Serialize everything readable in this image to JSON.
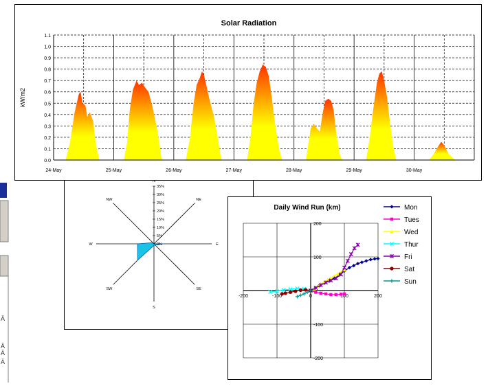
{
  "left_strip": {
    "glyphs": [
      "Ä",
      "Ä",
      "Ä",
      "Ä"
    ]
  },
  "chart_data": [
    {
      "type": "area",
      "title": "Solar Radiation",
      "ylabel": "kW/m2",
      "xlabel": "",
      "ylim": [
        0,
        1.1
      ],
      "yticks": [
        "0.0",
        "0.1",
        "0.2",
        "0.3",
        "0.4",
        "0.5",
        "0.6",
        "0.7",
        "0.8",
        "0.9",
        "1.0",
        "1.1"
      ],
      "x_categories": [
        "24-May",
        "25-May",
        "26-May",
        "27-May",
        "28-May",
        "29-May",
        "30-May"
      ],
      "grid": true,
      "colors": {
        "low": "#ffff00",
        "high": "#ff3300"
      },
      "series": [
        {
          "values": [
            [
              0.2,
              0
            ],
            [
              0.27,
              0.15
            ],
            [
              0.35,
              0.42
            ],
            [
              0.42,
              0.58
            ],
            [
              0.45,
              0.6
            ],
            [
              0.48,
              0.5
            ],
            [
              0.53,
              0.48
            ],
            [
              0.56,
              0.38
            ],
            [
              0.6,
              0.42
            ],
            [
              0.66,
              0.34
            ],
            [
              0.7,
              0.15
            ],
            [
              0.76,
              0
            ]
          ]
        },
        {
          "values": [
            [
              1.17,
              0
            ],
            [
              1.22,
              0.15
            ],
            [
              1.27,
              0.45
            ],
            [
              1.32,
              0.62
            ],
            [
              1.38,
              0.7
            ],
            [
              1.42,
              0.66
            ],
            [
              1.47,
              0.68
            ],
            [
              1.52,
              0.64
            ],
            [
              1.58,
              0.6
            ],
            [
              1.64,
              0.48
            ],
            [
              1.72,
              0.28
            ],
            [
              1.8,
              0
            ]
          ]
        },
        {
          "values": [
            [
              2.2,
              0
            ],
            [
              2.27,
              0.2
            ],
            [
              2.33,
              0.5
            ],
            [
              2.38,
              0.66
            ],
            [
              2.43,
              0.72
            ],
            [
              2.47,
              0.78
            ],
            [
              2.5,
              0.75
            ],
            [
              2.55,
              0.64
            ],
            [
              2.6,
              0.52
            ],
            [
              2.67,
              0.38
            ],
            [
              2.73,
              0.2
            ],
            [
              2.79,
              0
            ]
          ]
        },
        {
          "values": [
            [
              3.22,
              0
            ],
            [
              3.28,
              0.22
            ],
            [
              3.33,
              0.5
            ],
            [
              3.38,
              0.68
            ],
            [
              3.43,
              0.78
            ],
            [
              3.48,
              0.84
            ],
            [
              3.53,
              0.82
            ],
            [
              3.58,
              0.74
            ],
            [
              3.63,
              0.55
            ],
            [
              3.69,
              0.3
            ],
            [
              3.75,
              0.1
            ],
            [
              3.8,
              0
            ]
          ]
        },
        {
          "values": [
            [
              4.2,
              0
            ],
            [
              4.24,
              0.15
            ],
            [
              4.28,
              0.28
            ],
            [
              4.33,
              0.32
            ],
            [
              4.38,
              0.28
            ],
            [
              4.43,
              0.25
            ],
            [
              4.48,
              0.42
            ],
            [
              4.52,
              0.52
            ],
            [
              4.57,
              0.54
            ],
            [
              4.62,
              0.52
            ],
            [
              4.66,
              0.44
            ],
            [
              4.7,
              0.25
            ],
            [
              4.76,
              0.05
            ],
            [
              4.8,
              0
            ]
          ]
        },
        {
          "values": [
            [
              5.2,
              0
            ],
            [
              5.26,
              0.2
            ],
            [
              5.32,
              0.45
            ],
            [
              5.38,
              0.68
            ],
            [
              5.42,
              0.76
            ],
            [
              5.46,
              0.78
            ],
            [
              5.5,
              0.7
            ],
            [
              5.55,
              0.55
            ],
            [
              5.6,
              0.32
            ],
            [
              5.65,
              0.12
            ],
            [
              5.7,
              0
            ]
          ]
        },
        {
          "values": [
            [
              6.25,
              0
            ],
            [
              6.32,
              0.05
            ],
            [
              6.4,
              0.12
            ],
            [
              6.45,
              0.16
            ],
            [
              6.5,
              0.13
            ],
            [
              6.58,
              0.05
            ],
            [
              6.68,
              0
            ]
          ]
        }
      ]
    },
    {
      "type": "radar",
      "title": "",
      "directions": [
        "N",
        "NE",
        "E",
        "SE",
        "S",
        "SW",
        "W",
        "NW"
      ],
      "axis_labels": [
        "N",
        "NE",
        "E",
        "SE",
        "S",
        "SW",
        "W",
        "NW"
      ],
      "rticks": [
        "0%",
        "5%",
        "10%",
        "15%",
        "20%",
        "25%",
        "30%",
        "35%"
      ],
      "values_percent": [
        0,
        0,
        6,
        1,
        1,
        14,
        10,
        1
      ],
      "fill_color": "#19c3e6",
      "stroke_color": "#0066aa"
    },
    {
      "type": "scatter",
      "title": "Daily Wind Run (km)",
      "xlim": [
        -200,
        200
      ],
      "ylim": [
        -200,
        200
      ],
      "xticks": [
        "-200",
        "-100",
        "0",
        "100",
        "200"
      ],
      "yticks": [
        "200",
        "100",
        "0",
        "-100",
        "-200"
      ],
      "legend_position": "right",
      "series": [
        {
          "name": "Mon",
          "color": "#00008b",
          "marker": "diamond",
          "points": [
            [
              0,
              0
            ],
            [
              12,
              6
            ],
            [
              25,
              14
            ],
            [
              40,
              22
            ],
            [
              55,
              28
            ],
            [
              70,
              36
            ],
            [
              85,
              46
            ],
            [
              100,
              58
            ],
            [
              115,
              68
            ],
            [
              128,
              74
            ],
            [
              140,
              80
            ],
            [
              152,
              84
            ],
            [
              165,
              88
            ],
            [
              178,
              92
            ],
            [
              190,
              94
            ],
            [
              200,
              95
            ]
          ]
        },
        {
          "name": "Tues",
          "color": "#ff00cc",
          "marker": "square",
          "points": [
            [
              0,
              0
            ],
            [
              15,
              -5
            ],
            [
              30,
              -8
            ],
            [
              45,
              -10
            ],
            [
              60,
              -12
            ],
            [
              75,
              -12
            ],
            [
              90,
              -11
            ],
            [
              100,
              -10
            ]
          ]
        },
        {
          "name": "Wed",
          "color": "#ffff00",
          "marker": "triangle",
          "points": [
            [
              0,
              0
            ],
            [
              10,
              5
            ],
            [
              20,
              12
            ],
            [
              30,
              20
            ],
            [
              40,
              26
            ],
            [
              50,
              32
            ],
            [
              60,
              38
            ],
            [
              70,
              44
            ],
            [
              80,
              50
            ],
            [
              90,
              56
            ],
            [
              100,
              62
            ]
          ]
        },
        {
          "name": "Thur",
          "color": "#00ffff",
          "marker": "x",
          "points": [
            [
              0,
              0
            ],
            [
              -20,
              5
            ],
            [
              -40,
              6
            ],
            [
              -60,
              4
            ],
            [
              -80,
              2
            ],
            [
              -100,
              -2
            ],
            [
              -120,
              -4
            ]
          ]
        },
        {
          "name": "Fri",
          "color": "#8800aa",
          "marker": "star",
          "points": [
            [
              0,
              0
            ],
            [
              15,
              8
            ],
            [
              30,
              16
            ],
            [
              45,
              24
            ],
            [
              60,
              30
            ],
            [
              75,
              36
            ],
            [
              90,
              48
            ],
            [
              100,
              68
            ],
            [
              110,
              88
            ],
            [
              120,
              108
            ],
            [
              130,
              126
            ],
            [
              140,
              136
            ]
          ]
        },
        {
          "name": "Sat",
          "color": "#8b0000",
          "marker": "circle",
          "points": [
            [
              0,
              0
            ],
            [
              -15,
              2
            ],
            [
              -30,
              1
            ],
            [
              -45,
              -2
            ],
            [
              -60,
              -5
            ],
            [
              -75,
              -8
            ],
            [
              -85,
              -10
            ]
          ]
        },
        {
          "name": "Sun",
          "color": "#009999",
          "marker": "plus",
          "points": [
            [
              0,
              0
            ],
            [
              -10,
              -5
            ],
            [
              -20,
              -10
            ],
            [
              -30,
              -14
            ],
            [
              -40,
              -18
            ]
          ]
        }
      ]
    }
  ]
}
